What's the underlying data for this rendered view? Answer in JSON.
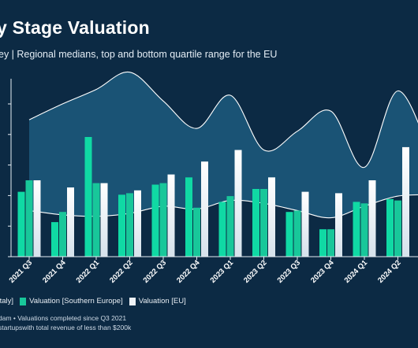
{
  "header": {
    "title": "y Stage Valuation",
    "subtitle": "ey | Regional medians, top and bottom quartile range for the EU"
  },
  "legend": {
    "items": [
      {
        "label": "Italy]",
        "color": "#10d9a4"
      },
      {
        "label": "Valuation [Southern Europe]",
        "color": "#18c79a"
      },
      {
        "label": "Valuation [EU]",
        "color": "#eef2f6"
      }
    ]
  },
  "footer": {
    "line1": "dam • Valuations completed since Q3 2021",
    "line2": "startupswith total revenue of less than $200k"
  },
  "colors": {
    "background": "#0c2a44",
    "italy": "#10d9a4",
    "southern_europe": "#18c79a",
    "eu": "#eef2f6",
    "band": "#1d5a7e",
    "axis": "#e6edf3"
  },
  "chart_data": {
    "type": "bar",
    "categories": [
      "2021 Q3",
      "2021 Q4",
      "2022 Q1",
      "2022 Q2",
      "2022 Q3",
      "2022 Q4",
      "2023 Q1",
      "2023 Q2",
      "2023 Q3",
      "2023 Q4",
      "2024 Q1",
      "2024 Q2"
    ],
    "series": [
      {
        "name": "Italy]",
        "values": [
          2.25,
          1.2,
          4.15,
          2.15,
          2.5,
          2.75,
          1.9,
          2.35,
          1.55,
          0.95,
          1.9,
          2.0
        ]
      },
      {
        "name": "Valuation [Southern Europe]",
        "values": [
          2.65,
          1.55,
          2.55,
          2.2,
          2.55,
          1.7,
          2.1,
          2.35,
          1.6,
          0.95,
          1.85,
          1.95
        ]
      },
      {
        "name": "Valuation [EU]",
        "values": [
          2.65,
          2.4,
          2.55,
          2.3,
          2.85,
          3.3,
          3.7,
          2.75,
          2.25,
          2.2,
          2.65,
          3.8
        ]
      }
    ],
    "band": {
      "top_quartile": [
        4.75,
        5.3,
        5.8,
        6.4,
        5.4,
        4.45,
        5.6,
        3.7,
        4.35,
        5.05,
        3.1,
        5.75
      ],
      "bottom_quartile": [
        1.6,
        1.45,
        1.4,
        1.5,
        1.75,
        1.65,
        1.95,
        1.85,
        1.6,
        1.35,
        1.75,
        2.1
      ]
    },
    "ylim": [
      0,
      6.5
    ],
    "tick_labels": [
      "",
      "",
      "",
      "",
      "",
      ""
    ],
    "xlabel": "",
    "ylabel": "",
    "grid": false,
    "legend_position": "bottom"
  }
}
